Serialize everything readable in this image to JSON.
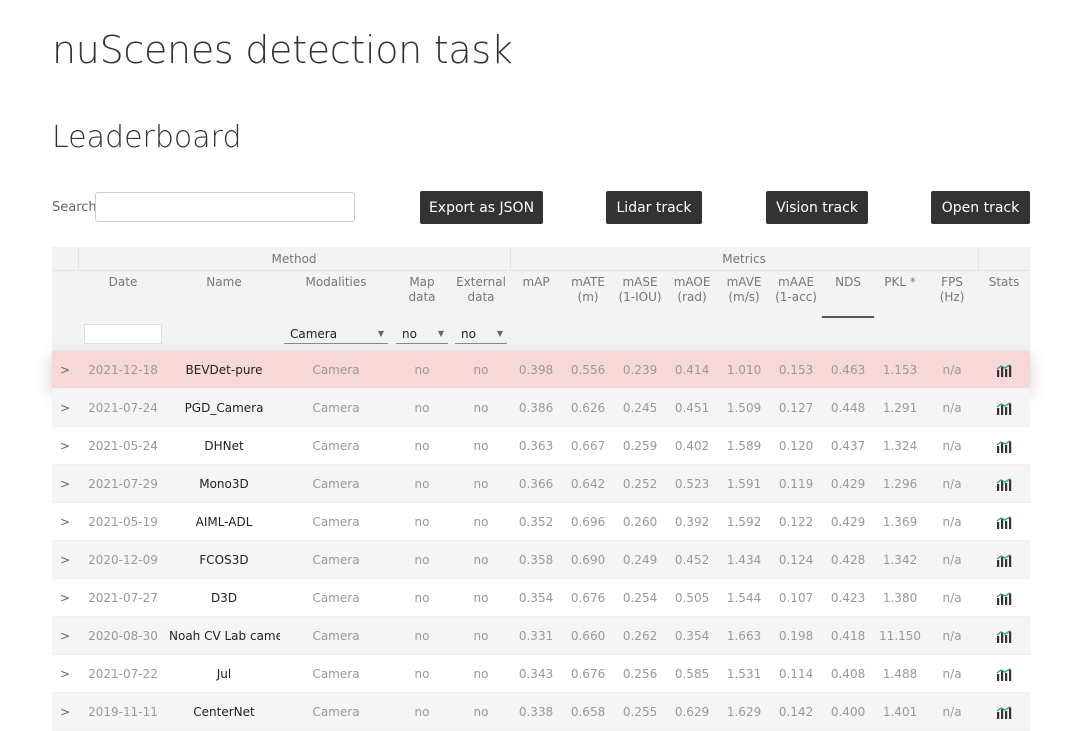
{
  "page": {
    "title": "nuScenes detection task",
    "subtitle": "Leaderboard"
  },
  "search": {
    "label": "Search:",
    "value": "",
    "placeholder": ""
  },
  "buttons": {
    "export": "Export as JSON",
    "lidar": "Lidar track",
    "vision": "Vision track",
    "open": "Open track"
  },
  "table": {
    "groups": {
      "method": "Method",
      "metrics": "Metrics"
    },
    "columns": {
      "date": "Date",
      "name": "Name",
      "modalities": "Modalities",
      "map_data_1": "Map",
      "map_data_2": "data",
      "external_data_1": "External",
      "external_data_2": "data",
      "map": "mAP",
      "mate_1": "mATE",
      "mate_2": "(m)",
      "mase_1": "mASE",
      "mase_2": "(1-IOU)",
      "maoe_1": "mAOE",
      "maoe_2": "(rad)",
      "mave_1": "mAVE",
      "mave_2": "(m/s)",
      "maae_1": "mAAE",
      "maae_2": "(1-acc)",
      "nds": "NDS",
      "pkl": "PKL *",
      "fps": "FPS (Hz)",
      "stats": "Stats"
    },
    "filters": {
      "date": "",
      "modalities": "Camera",
      "map_data": "no",
      "external_data": "no"
    },
    "sorted_column": "NDS",
    "highlighted_row": 0,
    "rows": [
      {
        "date": "2021-12-18",
        "name": "BEVDet-pure",
        "modalities": "Camera",
        "map_data": "no",
        "external_data": "no",
        "map": "0.398",
        "mate": "0.556",
        "mase": "0.239",
        "maoe": "0.414",
        "mave": "1.010",
        "maae": "0.153",
        "nds": "0.463",
        "pkl": "1.153",
        "fps": "n/a"
      },
      {
        "date": "2021-07-24",
        "name": "PGD_Camera",
        "modalities": "Camera",
        "map_data": "no",
        "external_data": "no",
        "map": "0.386",
        "mate": "0.626",
        "mase": "0.245",
        "maoe": "0.451",
        "mave": "1.509",
        "maae": "0.127",
        "nds": "0.448",
        "pkl": "1.291",
        "fps": "n/a"
      },
      {
        "date": "2021-05-24",
        "name": "DHNet",
        "modalities": "Camera",
        "map_data": "no",
        "external_data": "no",
        "map": "0.363",
        "mate": "0.667",
        "mase": "0.259",
        "maoe": "0.402",
        "mave": "1.589",
        "maae": "0.120",
        "nds": "0.437",
        "pkl": "1.324",
        "fps": "n/a"
      },
      {
        "date": "2021-07-29",
        "name": "Mono3D",
        "modalities": "Camera",
        "map_data": "no",
        "external_data": "no",
        "map": "0.366",
        "mate": "0.642",
        "mase": "0.252",
        "maoe": "0.523",
        "mave": "1.591",
        "maae": "0.119",
        "nds": "0.429",
        "pkl": "1.296",
        "fps": "n/a"
      },
      {
        "date": "2021-05-19",
        "name": "AIML-ADL",
        "modalities": "Camera",
        "map_data": "no",
        "external_data": "no",
        "map": "0.352",
        "mate": "0.696",
        "mase": "0.260",
        "maoe": "0.392",
        "mave": "1.592",
        "maae": "0.122",
        "nds": "0.429",
        "pkl": "1.369",
        "fps": "n/a"
      },
      {
        "date": "2020-12-09",
        "name": "FCOS3D",
        "modalities": "Camera",
        "map_data": "no",
        "external_data": "no",
        "map": "0.358",
        "mate": "0.690",
        "mase": "0.249",
        "maoe": "0.452",
        "mave": "1.434",
        "maae": "0.124",
        "nds": "0.428",
        "pkl": "1.342",
        "fps": "n/a"
      },
      {
        "date": "2021-07-27",
        "name": "D3D",
        "modalities": "Camera",
        "map_data": "no",
        "external_data": "no",
        "map": "0.354",
        "mate": "0.676",
        "mase": "0.254",
        "maoe": "0.505",
        "mave": "1.544",
        "maae": "0.107",
        "nds": "0.423",
        "pkl": "1.380",
        "fps": "n/a"
      },
      {
        "date": "2020-08-30",
        "name": "Noah CV Lab came",
        "modalities": "Camera",
        "map_data": "no",
        "external_data": "no",
        "map": "0.331",
        "mate": "0.660",
        "mase": "0.262",
        "maoe": "0.354",
        "mave": "1.663",
        "maae": "0.198",
        "nds": "0.418",
        "pkl": "11.150",
        "fps": "n/a"
      },
      {
        "date": "2021-07-22",
        "name": "Jul",
        "modalities": "Camera",
        "map_data": "no",
        "external_data": "no",
        "map": "0.343",
        "mate": "0.676",
        "mase": "0.256",
        "maoe": "0.585",
        "mave": "1.531",
        "maae": "0.114",
        "nds": "0.408",
        "pkl": "1.488",
        "fps": "n/a"
      },
      {
        "date": "2019-11-11",
        "name": "CenterNet",
        "modalities": "Camera",
        "map_data": "no",
        "external_data": "no",
        "map": "0.338",
        "mate": "0.658",
        "mase": "0.255",
        "maoe": "0.629",
        "mave": "1.629",
        "maae": "0.142",
        "nds": "0.400",
        "pkl": "1.401",
        "fps": "n/a"
      }
    ]
  },
  "icons": {
    "expand": "chevron-right-icon",
    "stats": "bar-chart-icon"
  },
  "colors": {
    "button_bg": "#333333",
    "highlight_row": "#f8d7d9",
    "stats_icon": "#333333",
    "stats_accent": "#2a9d8f"
  }
}
